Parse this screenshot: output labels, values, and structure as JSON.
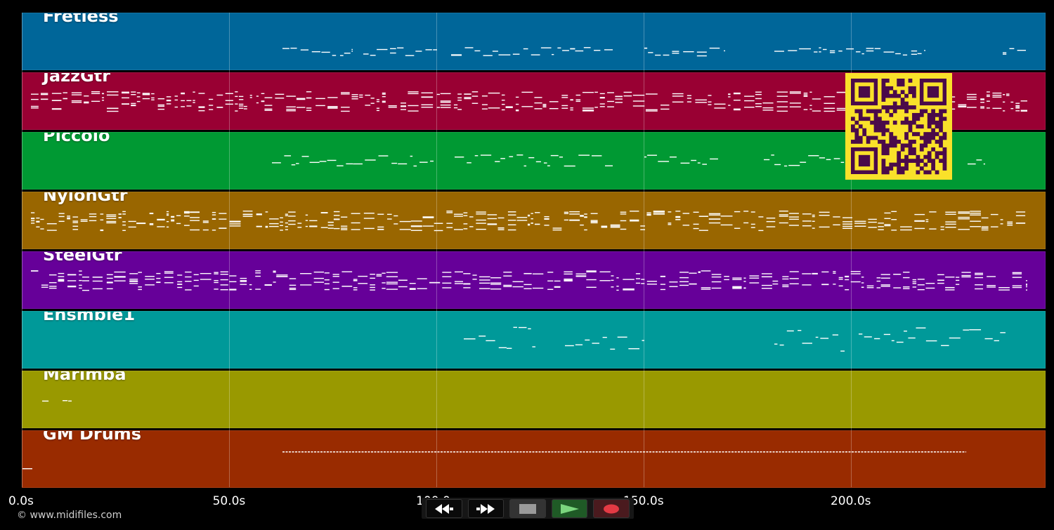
{
  "timeline": {
    "tracks": [
      {
        "name": "Fretless",
        "color": "#006699"
      },
      {
        "name": "JazzGtr",
        "color": "#990033"
      },
      {
        "name": "Piccolo",
        "color": "#009933"
      },
      {
        "name": "NylonGtr",
        "color": "#996600"
      },
      {
        "name": "SteelGtr",
        "color": "#660099"
      },
      {
        "name": "Ensmble1",
        "color": "#009999"
      },
      {
        "name": "Marimba",
        "color": "#999900"
      },
      {
        "name": "GM Drums",
        "color": "#992b00"
      }
    ],
    "axis": {
      "unit": "s",
      "range": [
        0,
        247
      ],
      "ticks": [
        {
          "value": 0,
          "label": "0.0s"
        },
        {
          "value": 50,
          "label": "50.0s"
        },
        {
          "value": 100,
          "label": "100.0s"
        },
        {
          "value": 150,
          "label": "150.0s"
        },
        {
          "value": 200,
          "label": "200.0s"
        }
      ]
    }
  },
  "footer": {
    "copyright": "© www.midifiles.com"
  },
  "transport": {
    "buttons": [
      {
        "id": "rewind",
        "icon": "rewind-icon"
      },
      {
        "id": "forward",
        "icon": "fast-forward-icon"
      },
      {
        "id": "stop",
        "icon": "stop-icon"
      },
      {
        "id": "play",
        "icon": "play-icon"
      },
      {
        "id": "record",
        "icon": "record-icon"
      }
    ]
  },
  "overlay": {
    "icon": "qr-code-icon",
    "color": "#f9e12a",
    "module_color": "#4a0a4a"
  }
}
